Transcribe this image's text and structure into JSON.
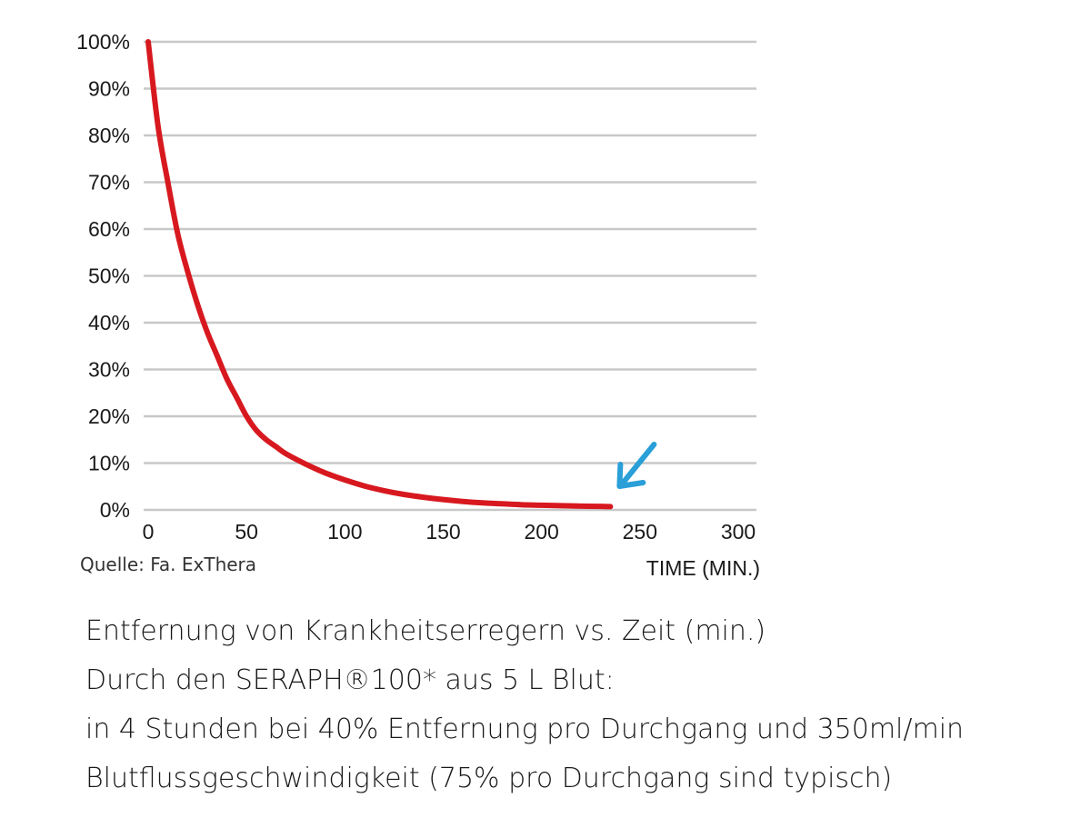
{
  "chart_data": {
    "type": "line",
    "x": [
      0,
      5,
      10,
      15,
      20,
      25,
      30,
      35,
      40,
      45,
      50,
      55,
      60,
      65,
      70,
      80,
      90,
      100,
      110,
      120,
      130,
      140,
      150,
      160,
      170,
      180,
      190,
      200,
      210,
      220,
      230,
      235
    ],
    "series": [
      {
        "values": [
          100,
          82,
          70,
          59,
          51,
          44,
          38,
          33,
          28,
          24,
          20,
          17,
          15,
          13.5,
          12,
          9.8,
          7.9,
          6.4,
          5.1,
          4.1,
          3.3,
          2.7,
          2.2,
          1.8,
          1.5,
          1.3,
          1.1,
          1.0,
          0.9,
          0.8,
          0.75,
          0.7
        ]
      }
    ],
    "x_ticks": [
      "0",
      "50",
      "100",
      "150",
      "200",
      "250",
      "300"
    ],
    "y_ticks": [
      "0%",
      "10%",
      "20%",
      "30%",
      "40%",
      "50%",
      "60%",
      "70%",
      "80%",
      "90%",
      "100%"
    ],
    "xlabel": "TIME (MIN.)",
    "ylabel": "",
    "xlim": [
      0,
      300
    ],
    "ylim": [
      0,
      100
    ],
    "grid": "horizontal",
    "line_color": "#d7191f",
    "grid_color": "#c8c8c8",
    "annotation": {
      "type": "arrow",
      "color": "#2a9fd8",
      "points_to_x": 235
    },
    "source": "Quelle: Fa. ExThera"
  },
  "caption": {
    "line1": "Entfernung von Krankheitserregern vs. Zeit (min.)",
    "line2": "Durch den SERAPH®100* aus 5 L Blut:",
    "line3": "in 4 Stunden bei 40% Entfernung pro Durchgang und 350ml/min",
    "line4": "Blutflussgeschwindigkeit (75% pro Durchgang sind typisch)"
  }
}
